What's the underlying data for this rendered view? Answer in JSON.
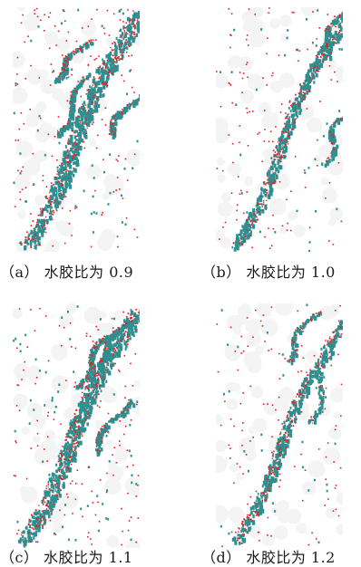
{
  "panels": [
    {
      "id": "a",
      "caption": "（a） 水胶比为 0.9"
    },
    {
      "id": "b",
      "caption": "（b） 水胶比为 1.0"
    },
    {
      "id": "c",
      "caption": "（c） 水胶比为 1.1"
    },
    {
      "id": "d",
      "caption": "（d） 水胶比为 1.2"
    }
  ],
  "colors": {
    "crack": "#2e8f90",
    "particle": "#e02020",
    "background": "#ffffff"
  }
}
